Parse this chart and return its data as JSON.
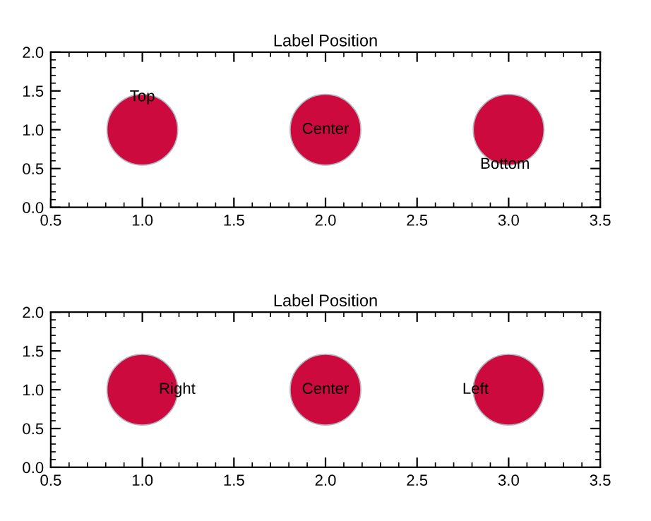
{
  "chart_data": [
    {
      "type": "scatter",
      "title": "Label Position",
      "x": [
        1.0,
        2.0,
        3.0
      ],
      "values": [
        1.0,
        1.0,
        1.0
      ],
      "color": "#cc0a3e",
      "marker": "circle",
      "xlim": [
        0.5,
        3.5
      ],
      "ylim": [
        0.0,
        2.0
      ],
      "xticks": [
        {
          "value": 0.5,
          "label": "0.5"
        },
        {
          "value": 1,
          "label": "1.0"
        },
        {
          "value": 1.5,
          "label": "1.5"
        },
        {
          "value": 2,
          "label": "2.0"
        },
        {
          "value": 2.5,
          "label": "2.5"
        },
        {
          "value": 3,
          "label": "3.0"
        },
        {
          "value": 3.5,
          "label": "3.5"
        }
      ],
      "yticks": [
        {
          "value": 0,
          "label": "0.0"
        },
        {
          "value": 0.5,
          "label": "0.5"
        },
        {
          "value": 1,
          "label": "1.0"
        },
        {
          "value": 1.5,
          "label": "1.5"
        },
        {
          "value": 2,
          "label": "2.0"
        }
      ],
      "grid": false,
      "annotations": [
        {
          "text": "Top",
          "x": 1.0,
          "y": 1.42
        },
        {
          "text": "Center",
          "x": 2.0,
          "y": 1.0
        },
        {
          "text": "Bottom",
          "x": 2.98,
          "y": 0.55
        }
      ]
    },
    {
      "type": "scatter",
      "title": "Label Position",
      "x": [
        1.0,
        2.0,
        3.0
      ],
      "values": [
        1.0,
        1.0,
        1.0
      ],
      "color": "#cc0a3e",
      "marker": "circle",
      "xlim": [
        0.5,
        3.5
      ],
      "ylim": [
        0.0,
        2.0
      ],
      "xticks": [
        {
          "value": 0.5,
          "label": "0.5"
        },
        {
          "value": 1,
          "label": "1.0"
        },
        {
          "value": 1.5,
          "label": "1.5"
        },
        {
          "value": 2,
          "label": "2.0"
        },
        {
          "value": 2.5,
          "label": "2.5"
        },
        {
          "value": 3,
          "label": "3.0"
        },
        {
          "value": 3.5,
          "label": "3.5"
        }
      ],
      "yticks": [
        {
          "value": 0,
          "label": "0.0"
        },
        {
          "value": 0.5,
          "label": "0.5"
        },
        {
          "value": 1,
          "label": "1.0"
        },
        {
          "value": 1.5,
          "label": "1.5"
        },
        {
          "value": 2,
          "label": "2.0"
        }
      ],
      "grid": false,
      "annotations": [
        {
          "text": "Right",
          "x": 1.19,
          "y": 1.0
        },
        {
          "text": "Center",
          "x": 2.0,
          "y": 1.0
        },
        "Left"
      ]
    }
  ]
}
